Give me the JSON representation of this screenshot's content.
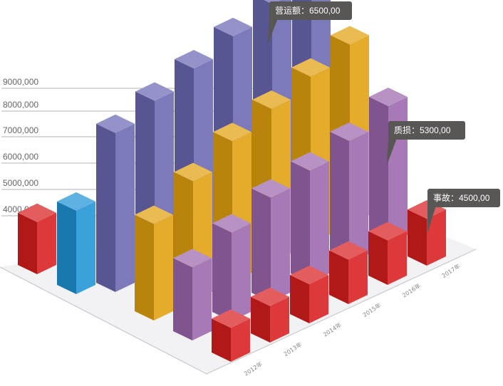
{
  "chart_data": {
    "type": "bar",
    "y_tick_labels": [
      "4000,000",
      "5000,000",
      "6000,000",
      "7000,000",
      "8000,000",
      "9000,000"
    ],
    "categories": [
      "2012年",
      "2013年",
      "2014年",
      "2015年",
      "2016年",
      "2017年"
    ],
    "ylim": [
      0,
      9000000
    ],
    "series": [
      {
        "name": "营运额",
        "values": [
          6100000,
          6600000,
          7100000,
          7600000,
          8100000,
          8600000
        ]
      },
      {
        "name": "",
        "values": [
          3700000,
          4600000,
          5400000,
          5900000,
          6400000,
          6900000
        ]
      },
      {
        "name": "质损",
        "values": [
          2800000,
          3400000,
          4000000,
          4300000,
          4700000,
          5300000
        ]
      },
      {
        "name": "事故",
        "values": [
          1300000,
          1400000,
          1500000,
          1700000,
          1700000,
          1800000
        ]
      }
    ],
    "front_row": [
      {
        "name": "",
        "value": 2000000
      },
      {
        "name": "",
        "value": 3200000
      },
      {
        "name": "",
        "value": 5600000
      },
      {
        "name": "",
        "value": 4400000
      }
    ],
    "callouts": [
      {
        "series": "营运额",
        "text": "营运额：6500,00"
      },
      {
        "series": "质损",
        "text": "质损：5300,00"
      },
      {
        "series": "事故",
        "text": "事故：4500,00"
      }
    ],
    "colors": {
      "营运额": "#6b68b3",
      "gold": "#e2a10e",
      "质损": "#9c67ad",
      "事故": "#d81e1f",
      "blue": "#1f94d6",
      "callout_bg": "#595656",
      "floor": "#f2f2f4",
      "grid": "#999999"
    }
  }
}
